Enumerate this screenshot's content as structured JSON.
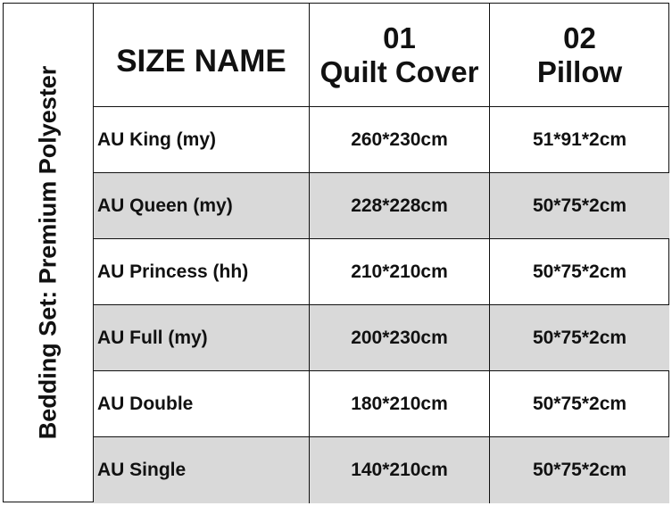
{
  "side_label": "Bedding Set: Premium Polyester",
  "header": {
    "size_name": "SIZE NAME",
    "col1_num": "01",
    "col1_name": "Quilt Cover",
    "col2_num": "02",
    "col2_name": "Pillow"
  },
  "rows": [
    {
      "size": "AU King (my)",
      "quilt": "260*230cm",
      "pillow": "51*91*2cm"
    },
    {
      "size": "AU Queen (my)",
      "quilt": "228*228cm",
      "pillow": "50*75*2cm"
    },
    {
      "size": "AU Princess (hh)",
      "quilt": "210*210cm",
      "pillow": "50*75*2cm"
    },
    {
      "size": "AU Full (my)",
      "quilt": "200*230cm",
      "pillow": "50*75*2cm"
    },
    {
      "size": "AU Double",
      "quilt": "180*210cm",
      "pillow": "50*75*2cm"
    },
    {
      "size": "AU Single",
      "quilt": "140*210cm",
      "pillow": "50*75*2cm"
    }
  ],
  "colors": {
    "stripe": "#d9d9d9",
    "border": "#111111"
  }
}
